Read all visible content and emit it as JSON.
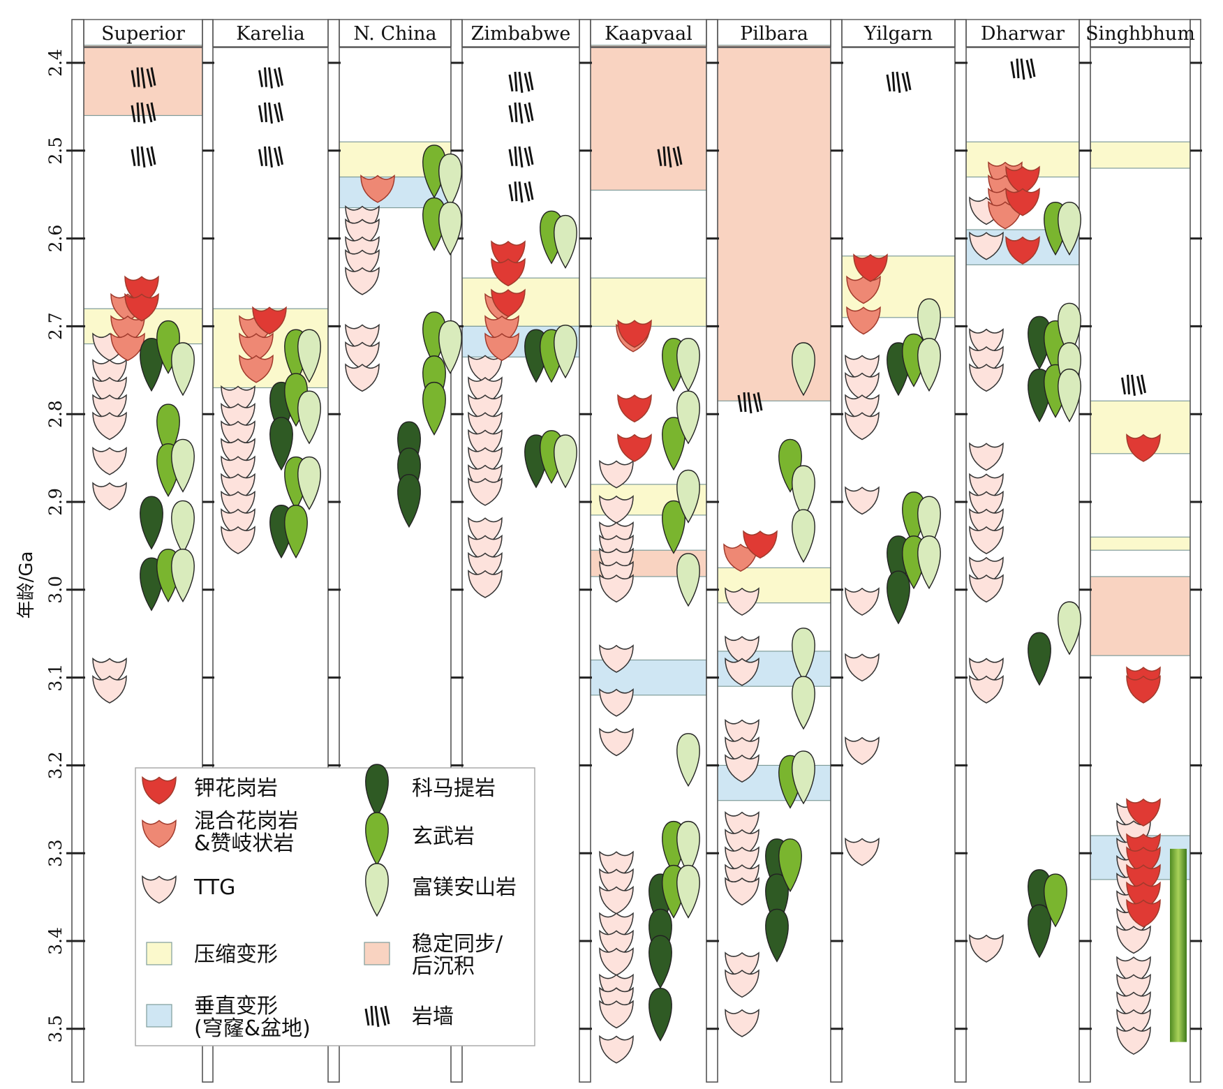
{
  "chart_data": {
    "type": "stratigraphic-column",
    "ylabel": "年龄/Ga",
    "ylim": [
      2.37,
      3.57
    ],
    "yticks": [
      "2.4",
      "2.5",
      "2.6",
      "2.7",
      "2.8",
      "2.9",
      "3.0",
      "3.1",
      "3.2",
      "3.3",
      "3.4",
      "3.5"
    ],
    "cratons": [
      "Superior",
      "Karelia",
      "N. China",
      "Zimbabwe",
      "Kaapvaal",
      "Pilbara",
      "Yilgarn",
      "Dharwar",
      "Singhbhum"
    ],
    "colors": {
      "k_granite": "#e03a34",
      "migmatite": "#ee8874",
      "ttg": "#fde2dc",
      "komatiite": "#2f5a24",
      "basalt": "#7ab52f",
      "mg_andesite": "#d9ebbc",
      "compression": "#fbf9cc",
      "vertical": "#cfe6f3",
      "sedimentation": "#f9d3c1"
    },
    "bands": [
      {
        "craton": 0,
        "type": "sedimentation",
        "from": 2.38,
        "to": 2.46
      },
      {
        "craton": 0,
        "type": "compression",
        "from": 2.68,
        "to": 2.72
      },
      {
        "craton": 1,
        "type": "compression",
        "from": 2.68,
        "to": 2.77
      },
      {
        "craton": 2,
        "type": "compression",
        "from": 2.49,
        "to": 2.53
      },
      {
        "craton": 2,
        "type": "vertical",
        "from": 2.53,
        "to": 2.565
      },
      {
        "craton": 3,
        "type": "compression",
        "from": 2.645,
        "to": 2.7
      },
      {
        "craton": 3,
        "type": "vertical",
        "from": 2.7,
        "to": 2.735
      },
      {
        "craton": 4,
        "type": "sedimentation",
        "from": 2.38,
        "to": 2.545
      },
      {
        "craton": 4,
        "type": "compression",
        "from": 2.645,
        "to": 2.7
      },
      {
        "craton": 4,
        "type": "compression",
        "from": 2.88,
        "to": 2.915
      },
      {
        "craton": 4,
        "type": "sedimentation",
        "from": 2.955,
        "to": 2.985
      },
      {
        "craton": 4,
        "type": "vertical",
        "from": 3.08,
        "to": 3.12
      },
      {
        "craton": 5,
        "type": "sedimentation",
        "from": 2.38,
        "to": 2.785
      },
      {
        "craton": 5,
        "type": "compression",
        "from": 2.975,
        "to": 3.015
      },
      {
        "craton": 5,
        "type": "vertical",
        "from": 3.07,
        "to": 3.11
      },
      {
        "craton": 5,
        "type": "vertical",
        "from": 3.2,
        "to": 3.24
      },
      {
        "craton": 6,
        "type": "compression",
        "from": 2.62,
        "to": 2.69
      },
      {
        "craton": 7,
        "type": "compression",
        "from": 2.49,
        "to": 2.53
      },
      {
        "craton": 7,
        "type": "vertical",
        "from": 2.59,
        "to": 2.63
      },
      {
        "craton": 8,
        "type": "compression",
        "from": 2.49,
        "to": 2.52
      },
      {
        "craton": 8,
        "type": "compression",
        "from": 2.785,
        "to": 2.845
      },
      {
        "craton": 8,
        "type": "compression",
        "from": 2.94,
        "to": 2.955
      },
      {
        "craton": 8,
        "type": "sedimentation",
        "from": 2.985,
        "to": 3.075
      },
      {
        "craton": 8,
        "type": "vertical",
        "from": 3.28,
        "to": 3.33
      }
    ],
    "dikes": [
      {
        "craton": 0,
        "ages": [
          2.41,
          2.45,
          2.5
        ]
      },
      {
        "craton": 1,
        "ages": [
          2.41,
          2.45,
          2.5
        ]
      },
      {
        "craton": 3,
        "ages": [
          2.415,
          2.45,
          2.5,
          2.54
        ]
      },
      {
        "craton": 4,
        "ages": [
          2.5
        ]
      },
      {
        "craton": 5,
        "ages": [
          2.78
        ]
      },
      {
        "craton": 6,
        "ages": [
          2.415
        ]
      },
      {
        "craton": 7,
        "ages": [
          2.4
        ]
      },
      {
        "craton": 8,
        "ages": [
          2.76
        ]
      }
    ],
    "rocks": [
      {
        "craton": 0,
        "col": 0,
        "type": "ttg",
        "ages": [
          2.72,
          2.75,
          2.77,
          2.79,
          2.81,
          2.85,
          2.89
        ]
      },
      {
        "craton": 0,
        "col": 0,
        "type": "ttg",
        "ages": [
          3.09,
          3.11
        ]
      },
      {
        "craton": 0,
        "col": 1,
        "type": "migmatite",
        "ages": [
          2.675,
          2.7,
          2.72
        ]
      },
      {
        "craton": 0,
        "col": 2,
        "type": "k_granite",
        "ages": [
          2.655,
          2.675
        ]
      },
      {
        "craton": 0,
        "col": 3,
        "type": "komatiite",
        "ages": [
          2.74,
          2.92,
          2.99
        ]
      },
      {
        "craton": 0,
        "col": 4,
        "type": "basalt",
        "ages": [
          2.72,
          2.815,
          2.86,
          2.98
        ]
      },
      {
        "craton": 0,
        "col": 5,
        "type": "mg_andesite",
        "ages": [
          2.745,
          2.855,
          2.925,
          2.98
        ]
      },
      {
        "craton": 1,
        "col": 0,
        "type": "ttg",
        "ages": [
          2.78,
          2.8,
          2.82,
          2.84,
          2.86,
          2.88,
          2.9,
          2.92,
          2.94
        ]
      },
      {
        "craton": 1,
        "col": 1,
        "type": "migmatite",
        "ages": [
          2.7,
          2.72,
          2.745
        ]
      },
      {
        "craton": 1,
        "col": 2,
        "type": "k_granite",
        "ages": [
          2.69
        ]
      },
      {
        "craton": 1,
        "col": 3,
        "type": "komatiite",
        "ages": [
          2.79,
          2.83,
          2.93
        ]
      },
      {
        "craton": 1,
        "col": 4,
        "type": "basalt",
        "ages": [
          2.73,
          2.78,
          2.875,
          2.93
        ]
      },
      {
        "craton": 1,
        "col": 5,
        "type": "mg_andesite",
        "ages": [
          2.73,
          2.8,
          2.875
        ]
      },
      {
        "craton": 2,
        "col": 0,
        "type": "ttg",
        "ages": [
          2.575,
          2.59,
          2.61,
          2.625,
          2.645
        ]
      },
      {
        "craton": 2,
        "col": 0,
        "type": "ttg",
        "ages": [
          2.71,
          2.73,
          2.755
        ]
      },
      {
        "craton": 2,
        "col": 1,
        "type": "migmatite",
        "ages": [
          2.54
        ]
      },
      {
        "craton": 2,
        "col": 2,
        "type": "komatiite",
        "ages": [
          2.835,
          2.865,
          2.895
        ]
      },
      {
        "craton": 2,
        "col": 3,
        "type": "basalt",
        "ages": [
          2.52,
          2.58,
          2.71,
          2.76,
          2.79
        ]
      },
      {
        "craton": 2,
        "col": 4,
        "type": "mg_andesite",
        "ages": [
          2.53,
          2.585,
          2.72
        ]
      },
      {
        "craton": 3,
        "col": 0,
        "type": "ttg",
        "ages": [
          2.745,
          2.77,
          2.79,
          2.81,
          2.83,
          2.85,
          2.87,
          2.885
        ]
      },
      {
        "craton": 3,
        "col": 0,
        "type": "ttg",
        "ages": [
          2.93,
          2.95,
          2.97,
          2.99
        ]
      },
      {
        "craton": 3,
        "col": 1,
        "type": "migmatite",
        "ages": [
          2.675,
          2.7,
          2.72
        ]
      },
      {
        "craton": 3,
        "col": 2,
        "type": "k_granite",
        "ages": [
          2.615,
          2.635,
          2.67
        ]
      },
      {
        "craton": 3,
        "col": 3,
        "type": "komatiite",
        "ages": [
          2.73,
          2.85
        ]
      },
      {
        "craton": 3,
        "col": 4,
        "type": "basalt",
        "ages": [
          2.595,
          2.73,
          2.845
        ]
      },
      {
        "craton": 3,
        "col": 5,
        "type": "mg_andesite",
        "ages": [
          2.6,
          2.725,
          2.85
        ]
      },
      {
        "craton": 4,
        "col": 0,
        "type": "ttg",
        "ages": [
          2.865,
          2.905,
          2.935
        ]
      },
      {
        "craton": 4,
        "col": 0,
        "type": "ttg",
        "ages": [
          2.95,
          2.965,
          2.98,
          2.995
        ]
      },
      {
        "craton": 4,
        "col": 0,
        "type": "ttg",
        "ages": [
          3.075,
          3.125,
          3.17
        ]
      },
      {
        "craton": 4,
        "col": 0,
        "type": "ttg",
        "ages": [
          3.31,
          3.33,
          3.35
        ]
      },
      {
        "craton": 4,
        "col": 0,
        "type": "ttg",
        "ages": [
          3.38,
          3.4,
          3.42
        ]
      },
      {
        "craton": 4,
        "col": 0,
        "type": "ttg",
        "ages": [
          3.45,
          3.465,
          3.48
        ]
      },
      {
        "craton": 4,
        "col": 0,
        "type": "ttg",
        "ages": [
          3.52
        ]
      },
      {
        "craton": 4,
        "col": 1,
        "type": "migmatite",
        "ages": [
          2.71
        ]
      },
      {
        "craton": 4,
        "col": 2,
        "type": "k_granite",
        "ages": [
          2.705,
          2.79,
          2.835
        ]
      },
      {
        "craton": 4,
        "col": 3,
        "type": "komatiite",
        "ages": [
          3.35,
          3.39,
          3.42,
          3.48
        ]
      },
      {
        "craton": 4,
        "col": 4,
        "type": "basalt",
        "ages": [
          2.74,
          2.83,
          2.925,
          3.29,
          3.34
        ]
      },
      {
        "craton": 4,
        "col": 5,
        "type": "mg_andesite",
        "ages": [
          2.74,
          2.8,
          2.89,
          2.985,
          3.19,
          3.29,
          3.34
        ]
      },
      {
        "craton": 5,
        "col": 0,
        "type": "ttg",
        "ages": [
          3.01,
          3.065,
          3.09
        ]
      },
      {
        "craton": 5,
        "col": 0,
        "type": "ttg",
        "ages": [
          3.16,
          3.18,
          3.2
        ]
      },
      {
        "craton": 5,
        "col": 0,
        "type": "ttg",
        "ages": [
          3.265,
          3.285,
          3.305,
          3.325,
          3.34
        ]
      },
      {
        "craton": 5,
        "col": 0,
        "type": "ttg",
        "ages": [
          3.425,
          3.445
        ]
      },
      {
        "craton": 5,
        "col": 0,
        "type": "ttg",
        "ages": [
          3.49
        ]
      },
      {
        "craton": 5,
        "col": 1,
        "type": "migmatite",
        "ages": [
          2.96
        ]
      },
      {
        "craton": 5,
        "col": 2,
        "type": "k_granite",
        "ages": [
          2.945
        ]
      },
      {
        "craton": 5,
        "col": 3,
        "type": "komatiite",
        "ages": [
          3.31,
          3.35,
          3.39
        ]
      },
      {
        "craton": 5,
        "col": 4,
        "type": "basalt",
        "ages": [
          2.855,
          3.215,
          3.31
        ]
      },
      {
        "craton": 5,
        "col": 5,
        "type": "mg_andesite",
        "ages": [
          2.745,
          2.885,
          2.935,
          3.07,
          3.125,
          3.21
        ]
      },
      {
        "craton": 6,
        "col": 0,
        "type": "ttg",
        "ages": [
          2.745,
          2.765,
          2.79,
          2.81
        ]
      },
      {
        "craton": 6,
        "col": 0,
        "type": "ttg",
        "ages": [
          2.895,
          3.01,
          3.085,
          3.18,
          3.295
        ]
      },
      {
        "craton": 6,
        "col": 1,
        "type": "migmatite",
        "ages": [
          2.655,
          2.69
        ]
      },
      {
        "craton": 6,
        "col": 2,
        "type": "k_granite",
        "ages": [
          2.63
        ]
      },
      {
        "craton": 6,
        "col": 3,
        "type": "komatiite",
        "ages": [
          2.745,
          2.965,
          3.005
        ]
      },
      {
        "craton": 6,
        "col": 4,
        "type": "basalt",
        "ages": [
          2.735,
          2.915,
          2.965
        ]
      },
      {
        "craton": 6,
        "col": 5,
        "type": "mg_andesite",
        "ages": [
          2.695,
          2.74,
          2.92,
          2.965
        ]
      },
      {
        "craton": 7,
        "col": 0,
        "type": "ttg",
        "ages": [
          2.565,
          2.605
        ]
      },
      {
        "craton": 7,
        "col": 0,
        "type": "ttg",
        "ages": [
          2.715,
          2.735,
          2.755
        ]
      },
      {
        "craton": 7,
        "col": 0,
        "type": "ttg",
        "ages": [
          2.845,
          2.88,
          2.9,
          2.92,
          2.94
        ]
      },
      {
        "craton": 7,
        "col": 0,
        "type": "ttg",
        "ages": [
          2.975,
          2.995,
          3.09,
          3.11,
          3.405
        ]
      },
      {
        "craton": 7,
        "col": 1,
        "type": "migmatite",
        "ages": [
          2.525,
          2.54,
          2.555,
          2.57
        ]
      },
      {
        "craton": 7,
        "col": 2,
        "type": "k_granite",
        "ages": [
          2.53,
          2.555,
          2.61
        ]
      },
      {
        "craton": 7,
        "col": 3,
        "type": "komatiite",
        "ages": [
          2.715,
          2.775,
          3.075,
          3.345,
          3.385
        ]
      },
      {
        "craton": 7,
        "col": 4,
        "type": "basalt",
        "ages": [
          2.585,
          2.72,
          2.77,
          3.35
        ]
      },
      {
        "craton": 7,
        "col": 5,
        "type": "mg_andesite",
        "ages": [
          2.585,
          2.7,
          2.745,
          2.775,
          3.04
        ]
      },
      {
        "craton": 8,
        "col": 0,
        "type": "ttg",
        "ages": [
          3.255,
          3.275,
          3.295,
          3.315,
          3.335,
          3.355,
          3.375,
          3.395
        ]
      },
      {
        "craton": 8,
        "col": 0,
        "type": "ttg",
        "ages": [
          3.43,
          3.45,
          3.47,
          3.49,
          3.51
        ]
      },
      {
        "craton": 8,
        "col": 1,
        "type": "k_granite",
        "ages": [
          2.835,
          3.1,
          3.11,
          3.25
        ]
      },
      {
        "craton": 8,
        "col": 1,
        "type": "k_granite",
        "ages": [
          3.29,
          3.305,
          3.325,
          3.345,
          3.365
        ]
      }
    ],
    "legend": [
      {
        "key": "k_granite",
        "label": "钾花岗岩"
      },
      {
        "key": "migmatite",
        "label": "混合花岗岩",
        "label2": "&赞岐状岩"
      },
      {
        "key": "ttg",
        "label": "TTG"
      },
      {
        "key": "compression",
        "label": "压缩变形"
      },
      {
        "key": "vertical",
        "label": "垂直变形",
        "label2": "(穹窿&盆地)"
      },
      {
        "key": "komatiite",
        "label": "科马提岩"
      },
      {
        "key": "basalt",
        "label": "玄武岩"
      },
      {
        "key": "mg_andesite",
        "label": "富镁安山岩"
      },
      {
        "key": "sedimentation",
        "label": "稳定同步/",
        "label2": "后沉积"
      },
      {
        "key": "dike",
        "label": "岩墙"
      }
    ]
  }
}
